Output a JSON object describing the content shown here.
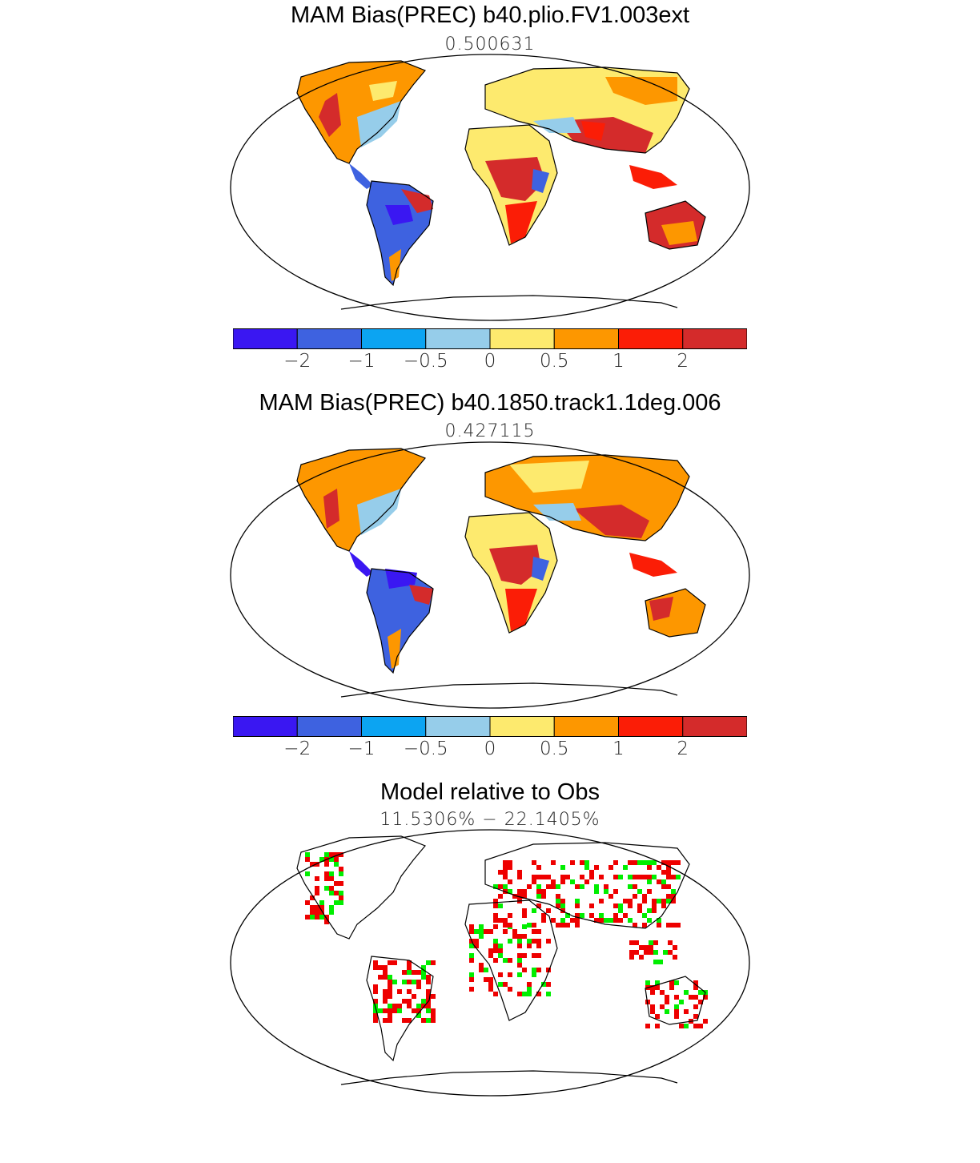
{
  "panels": [
    {
      "title": "MAM Bias(PREC) b40.plio.FV1.003ext",
      "subtitle": "0.500631"
    },
    {
      "title": "MAM Bias(PREC) b40.1850.track1.1deg.006",
      "subtitle": "0.427115"
    },
    {
      "title": "Model relative to Obs",
      "subtitle": "11.5306% − 22.1405%"
    }
  ],
  "colorbar": {
    "colors": [
      "#3a17f2",
      "#3e62e0",
      "#0ca4f2",
      "#96cdea",
      "#fdea6e",
      "#fd9700",
      "#fb1d06",
      "#d42b2b"
    ],
    "labels": [
      "−2",
      "−1",
      "−0.5",
      "0",
      "0.5",
      "1",
      "2"
    ]
  },
  "comparison_colors": {
    "better": "#00ee00",
    "worse": "#ee0000"
  }
}
